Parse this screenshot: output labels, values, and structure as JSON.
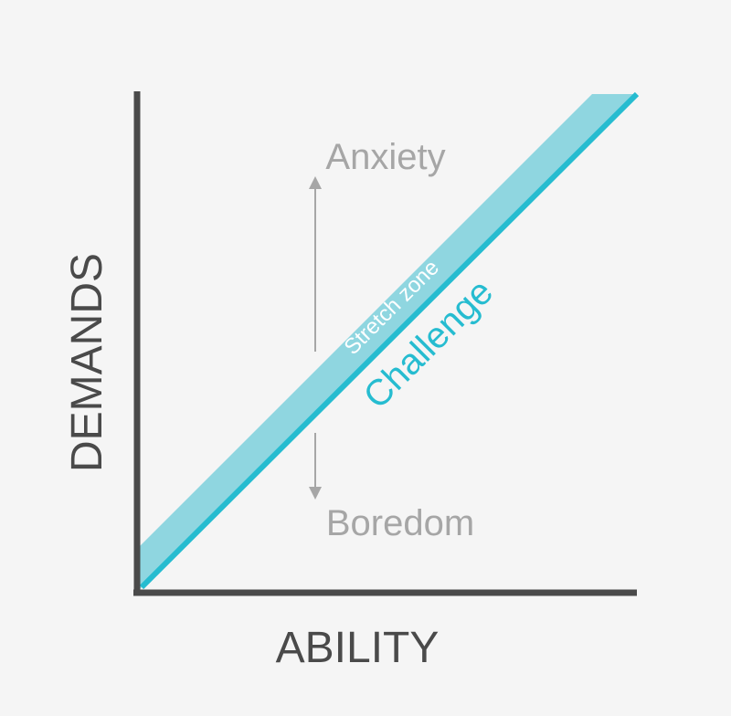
{
  "axes": {
    "x_label": "ABILITY",
    "y_label": "DEMANDS"
  },
  "zones": {
    "upper": "Anxiety",
    "lower": "Boredom",
    "band": "Stretch zone",
    "line": "Challenge"
  },
  "colors": {
    "background": "#f5f5f5",
    "axis": "#4a4a4a",
    "band_fill": "#8fd6e0",
    "line": "#26bcd0",
    "muted_text": "#a6a6a6",
    "accent_text": "#26bcd0",
    "band_text": "#ffffff"
  }
}
